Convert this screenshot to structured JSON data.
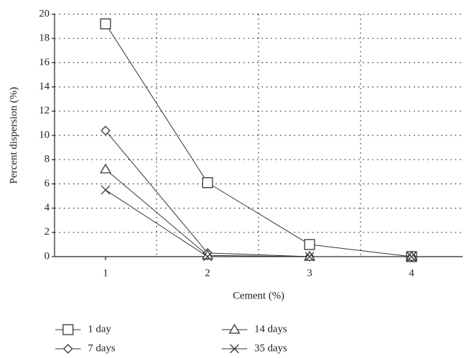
{
  "chart_data": {
    "type": "line",
    "xlabel": "Cement (%)",
    "ylabel": "Percent dispersion (%)",
    "x": [
      1,
      2,
      3,
      4
    ],
    "xlim": [
      0.5,
      4.5
    ],
    "xticks": [
      1,
      2,
      3,
      4
    ],
    "xgrid": [
      1.5,
      2.5,
      3.5
    ],
    "ylim": [
      0,
      20
    ],
    "yticks": [
      0,
      2,
      4,
      6,
      8,
      10,
      12,
      14,
      16,
      18,
      20
    ],
    "grid": true,
    "series": [
      {
        "name": "1 day",
        "color": "#333333",
        "marker": "square",
        "values": [
          19.2,
          6.1,
          1.0,
          0.0
        ]
      },
      {
        "name": "7 days",
        "color": "#333333",
        "marker": "diamond",
        "values": [
          10.4,
          0.3,
          0.0,
          0.0
        ]
      },
      {
        "name": "14 days",
        "color": "#333333",
        "marker": "triangle",
        "values": [
          7.2,
          0.1,
          0.0,
          0.0
        ]
      },
      {
        "name": "35 days",
        "color": "#333333",
        "marker": "x",
        "values": [
          5.5,
          0.0,
          0.0,
          0.0
        ]
      }
    ]
  }
}
